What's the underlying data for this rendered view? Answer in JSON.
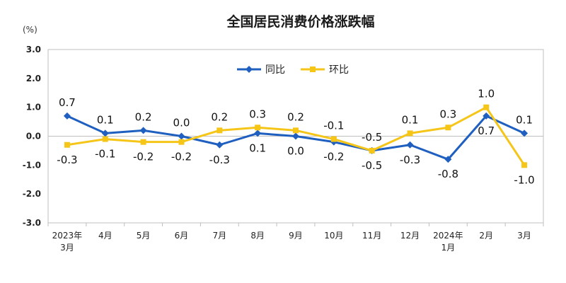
{
  "chart_data": {
    "type": "line",
    "title": "全国居民消费价格涨跌幅",
    "ylabel": "(%)",
    "xlabel": "",
    "categories": [
      [
        "2023年",
        "3月"
      ],
      [
        "4月"
      ],
      [
        "5月"
      ],
      [
        "6月"
      ],
      [
        "7月"
      ],
      [
        "8月"
      ],
      [
        "9月"
      ],
      [
        "10月"
      ],
      [
        "11月"
      ],
      [
        "12月"
      ],
      [
        "2024年",
        "1月"
      ],
      [
        "2月"
      ],
      [
        "3月"
      ]
    ],
    "ylim": [
      -3.0,
      3.0
    ],
    "yticks": [
      "3.0",
      "2.0",
      "1.0",
      "0.0",
      "-1.0",
      "-2.0",
      "-3.0"
    ],
    "grid": false,
    "legend_position": "top-center",
    "series": [
      {
        "name": "同比",
        "color": "#1f5fbf",
        "values": [
          0.7,
          0.1,
          0.2,
          0.0,
          -0.3,
          0.1,
          0.0,
          -0.2,
          -0.5,
          -0.3,
          -0.8,
          0.7,
          0.1
        ],
        "labels": [
          "0.7",
          "0.1",
          "0.2",
          "0.0",
          "-0.3",
          "0.1",
          "0.0",
          "-0.2",
          "-0.5",
          "-0.3",
          "-0.8",
          "0.7",
          "0.1"
        ]
      },
      {
        "name": "环比",
        "color": "#f5c518",
        "values": [
          -0.3,
          -0.1,
          -0.2,
          -0.2,
          0.2,
          0.3,
          0.2,
          -0.1,
          -0.5,
          0.1,
          0.3,
          1.0,
          -1.0
        ],
        "labels": [
          "-0.3",
          "-0.1",
          "-0.2",
          "-0.2",
          "0.2",
          "0.3",
          "0.2",
          "-0.1",
          "-0.5",
          "0.1",
          "0.3",
          "1.0",
          "-1.0"
        ]
      }
    ]
  }
}
